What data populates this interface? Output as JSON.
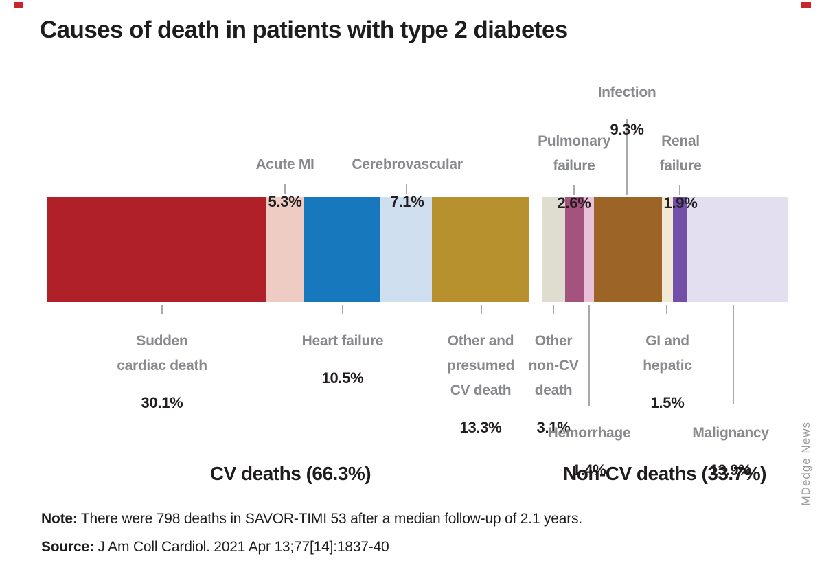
{
  "page": {
    "title": "Causes of death in patients with type 2 diabetes",
    "note_label": "Note:",
    "note_text": " There were 798 deaths in SAVOR-TIMI 53 after a median follow-up of 2.1 years.",
    "source_label": "Source:",
    "source_text": " J Am Coll Cardiol. 2021 Apr 13;77[14]:1837-40",
    "credit": "MDedge News",
    "accent_color": "#c9252b",
    "label_gray": "#87898c",
    "text_black": "#231f20"
  },
  "chart_data": {
    "type": "bar",
    "variant": "stacked-horizontal-single-bar",
    "title": "Causes of death in patients with type 2 diabetes",
    "units": "%",
    "legend_position": "callouts",
    "grid": false,
    "groups": [
      {
        "label": "CV deaths (66.3%)",
        "total": 66.3,
        "segments": [
          {
            "label": "Sudden\ncardiac death",
            "clean_label": "Sudden cardiac death",
            "value": 30.1,
            "pct_label": "30.1%",
            "color": "#b02028"
          },
          {
            "label": "Acute MI",
            "clean_label": "Acute MI",
            "value": 5.3,
            "pct_label": "5.3%",
            "color": "#eeccc3"
          },
          {
            "label": "Heart failure",
            "clean_label": "Heart failure",
            "value": 10.5,
            "pct_label": "10.5%",
            "color": "#1878bd"
          },
          {
            "label": "Cerebrovascular",
            "clean_label": "Cerebrovascular",
            "value": 7.1,
            "pct_label": "7.1%",
            "color": "#cfdff0"
          },
          {
            "label": "Other and\npresumed\nCV death",
            "clean_label": "Other and presumed CV death",
            "value": 13.3,
            "pct_label": "13.3%",
            "color": "#b6912d"
          }
        ]
      },
      {
        "label": "Non-CV deaths (33.7%)",
        "total": 33.7,
        "segments": [
          {
            "label": "Other\nnon-CV\ndeath",
            "clean_label": "Other non-CV death",
            "value": 3.1,
            "pct_label": "3.1%",
            "color": "#dfddd0"
          },
          {
            "label": "Pulmonary\nfailure",
            "clean_label": "Pulmonary failure",
            "value": 2.6,
            "pct_label": "2.6%",
            "color": "#a4527e"
          },
          {
            "label": "Hemorrhage",
            "clean_label": "Hemorrhage",
            "value": 1.4,
            "pct_label": "1.4%",
            "color": "#e8c2da"
          },
          {
            "label": "Infection",
            "clean_label": "Infection",
            "value": 9.3,
            "pct_label": "9.3%",
            "color": "#9c6426"
          },
          {
            "label": "GI and\nhepatic",
            "clean_label": "GI and hepatic",
            "value": 1.5,
            "pct_label": "1.5%",
            "color": "#f2e8d6"
          },
          {
            "label": "Renal\nfailure",
            "clean_label": "Renal failure",
            "value": 1.9,
            "pct_label": "1.9%",
            "color": "#744fa9"
          },
          {
            "label": "Malignancy",
            "clean_label": "Malignancy",
            "value": 13.9,
            "pct_label": "13.9%",
            "color": "#e4dff0"
          }
        ]
      }
    ]
  }
}
